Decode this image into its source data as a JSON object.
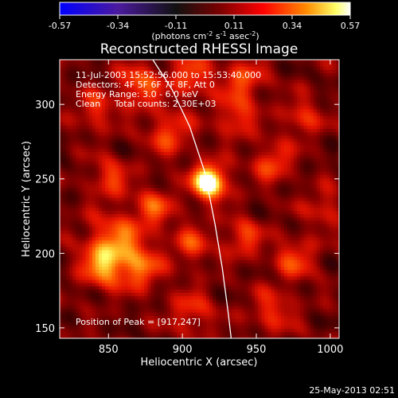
{
  "chart_data": {
    "type": "heatmap",
    "title": "Reconstructed RHESSI Image",
    "xlabel": "Heliocentric X (arcsec)",
    "ylabel": "Heliocentric Y (arcsec)",
    "xlim": [
      817,
      1006
    ],
    "ylim": [
      143,
      330
    ],
    "xticks": [
      850,
      900,
      950,
      1000
    ],
    "yticks": [
      150,
      200,
      250,
      300
    ],
    "colorbar": {
      "range": [
        -0.57,
        0.57
      ],
      "ticks": [
        "-0.57",
        "-0.34",
        "-0.11",
        "0.11",
        "0.34",
        "0.57"
      ],
      "unit_label": "(photons cm<sup>-2</sup> s<sup>-1</sup> asec<sup>-2</sup>)",
      "colormap": [
        "#0000ff",
        "#6a1b9a",
        "#000000",
        "#8b0000",
        "#ff0000",
        "#ff8c00",
        "#ffff66",
        "#ffffff"
      ]
    },
    "annotations": [
      "11-Jul-2003 15:52:56.000 to 15:53:40.000",
      "Detectors: 4F 5F 6F 7F 8F, Att 0",
      "Energy Range: 3.0 - 6.0 keV",
      "Clean     Total counts: 2.30E+03"
    ],
    "peak_label": "Position of Peak = [917,247]",
    "peak": {
      "x": 917,
      "y": 247,
      "value": 0.57
    },
    "limb_curve": {
      "x": [
        880,
        893,
        905,
        915,
        922,
        927,
        931,
        933
      ],
      "y": [
        330,
        310,
        285,
        255,
        220,
        190,
        160,
        143
      ]
    },
    "blobs": [
      {
        "x": 917,
        "y": 247,
        "amp": 0.6,
        "r": 8
      },
      {
        "x": 855,
        "y": 205,
        "amp": 0.3,
        "r": 14
      },
      {
        "x": 845,
        "y": 190,
        "amp": 0.25,
        "r": 10
      },
      {
        "x": 872,
        "y": 188,
        "amp": 0.22,
        "r": 9
      },
      {
        "x": 870,
        "y": 312,
        "amp": 0.25,
        "r": 10
      },
      {
        "x": 905,
        "y": 318,
        "amp": 0.22,
        "r": 10
      },
      {
        "x": 940,
        "y": 315,
        "amp": 0.22,
        "r": 10
      },
      {
        "x": 890,
        "y": 280,
        "amp": 0.22,
        "r": 10
      },
      {
        "x": 935,
        "y": 290,
        "amp": 0.2,
        "r": 9
      },
      {
        "x": 960,
        "y": 260,
        "amp": 0.22,
        "r": 9
      },
      {
        "x": 980,
        "y": 290,
        "amp": 0.18,
        "r": 9
      },
      {
        "x": 850,
        "y": 250,
        "amp": 0.2,
        "r": 9
      },
      {
        "x": 880,
        "y": 230,
        "amp": 0.22,
        "r": 9
      },
      {
        "x": 905,
        "y": 205,
        "amp": 0.2,
        "r": 9
      },
      {
        "x": 940,
        "y": 210,
        "amp": 0.2,
        "r": 9
      },
      {
        "x": 975,
        "y": 195,
        "amp": 0.2,
        "r": 10
      },
      {
        "x": 960,
        "y": 160,
        "amp": 0.18,
        "r": 10
      },
      {
        "x": 905,
        "y": 160,
        "amp": 0.18,
        "r": 10
      },
      {
        "x": 995,
        "y": 230,
        "amp": 0.15,
        "r": 9
      },
      {
        "x": 840,
        "y": 295,
        "amp": 0.18,
        "r": 9
      }
    ]
  },
  "footer": {
    "timestamp": "25-May-2013 02:51"
  }
}
